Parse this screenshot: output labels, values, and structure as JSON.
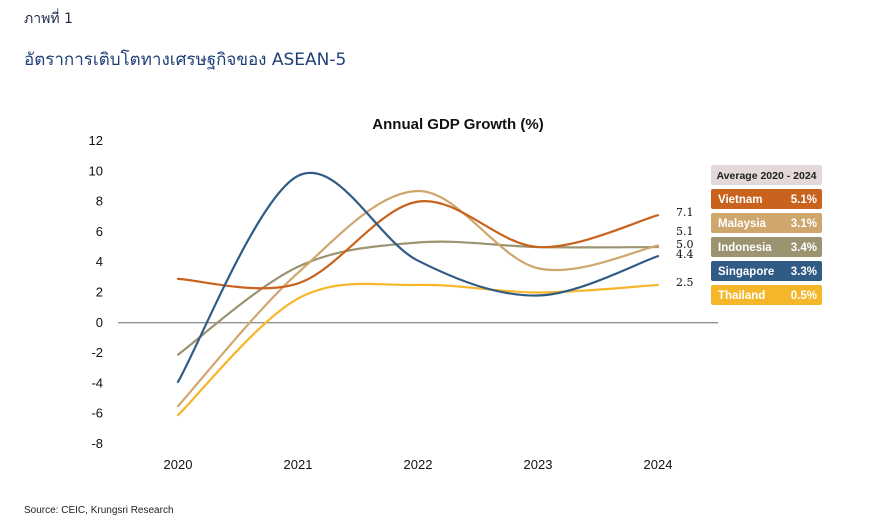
{
  "header": {
    "figure_label": "ภาพที่ 1",
    "figure_title": "อัตราการเติบโตทางเศรษฐกิจของ ASEAN-5"
  },
  "source": "Source: CEIC, Krungsri Research",
  "chart_data": {
    "type": "line",
    "title": "Annual GDP Growth (%)",
    "xlabel": "",
    "ylabel": "",
    "categories": [
      "2020",
      "2021",
      "2022",
      "2023",
      "2024"
    ],
    "ylim": [
      -8,
      12
    ],
    "yticks": [
      "12",
      "10",
      "8",
      "6",
      "4",
      "2",
      "0",
      "-2",
      "-4",
      "-6",
      "-8"
    ],
    "ytick_values": [
      12,
      10,
      8,
      6,
      4,
      2,
      0,
      -2,
      -4,
      -6,
      -8
    ],
    "grid": false,
    "smooth": true,
    "legend_heading": "Average 2020 - 2024",
    "legend_position": "right",
    "series": [
      {
        "name": "Vietnam",
        "values": [
          2.9,
          2.6,
          8.0,
          5.0,
          7.1
        ],
        "end_label": "7.1",
        "average": "5.1%",
        "color": "#c8621d"
      },
      {
        "name": "Malaysia",
        "values": [
          -5.5,
          3.3,
          8.7,
          3.6,
          5.1
        ],
        "end_label": "5.1",
        "average": "3.1%",
        "color": "#cfa66c"
      },
      {
        "name": "Indonesia",
        "values": [
          -2.1,
          3.7,
          5.3,
          5.0,
          5.0
        ],
        "end_label": "5.0",
        "average": "3.4%",
        "color": "#9c9470"
      },
      {
        "name": "Singapore",
        "values": [
          -3.9,
          9.7,
          4.1,
          1.8,
          4.4
        ],
        "end_label": "4.4",
        "average": "3.3%",
        "color": "#2f5b85"
      },
      {
        "name": "Thailand",
        "values": [
          -6.1,
          1.6,
          2.5,
          2.0,
          2.5
        ],
        "end_label": "2.5",
        "average": "0.5%",
        "color": "#f5b62a"
      }
    ],
    "legend_head_color": "#e4d8d9",
    "zero_line_color": "#555555"
  }
}
